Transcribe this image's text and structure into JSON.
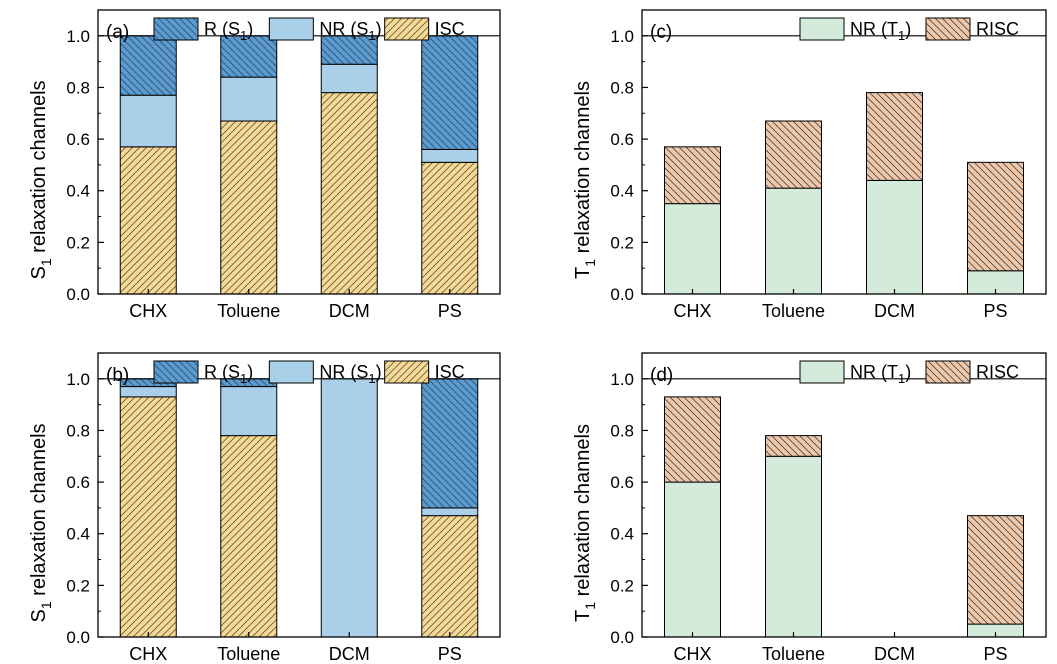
{
  "colors": {
    "R_S1": "#5b9bd0",
    "NR_S1": "#a9d0e8",
    "ISC": "#f4d998",
    "NR_T1": "#d4ebdc",
    "RISC": "#f6c6a0",
    "edge": "#000000"
  },
  "chart_data": [
    {
      "panel_label": "(a)",
      "type": "bar",
      "stacked": true,
      "categories": [
        "CHX",
        "Toluene",
        "DCM",
        "PS"
      ],
      "ylabel_main": "S",
      "ylabel_sub": "1",
      "ylabel_rest": " relaxation channels",
      "ylim": [
        0,
        1.1
      ],
      "yticks": [
        "0.0",
        "0.2",
        "0.4",
        "0.6",
        "0.8",
        "1.0"
      ],
      "legend_position": "top",
      "series": [
        {
          "name": "ISC",
          "label_main": "ISC",
          "label_sub": "",
          "label_tail": "",
          "color_key": "ISC",
          "hatch": "fwd-thin",
          "values": [
            0.57,
            0.67,
            0.78,
            0.51
          ]
        },
        {
          "name": "NR (S1)",
          "label_main": "NR (S",
          "label_sub": "1",
          "label_tail": ")",
          "color_key": "NR_S1",
          "hatch": "none",
          "values": [
            0.2,
            0.17,
            0.11,
            0.05
          ]
        },
        {
          "name": "R (S1)",
          "label_main": "R (S",
          "label_sub": "1",
          "label_tail": ")",
          "color_key": "R_S1",
          "hatch": "back-thin",
          "values": [
            0.23,
            0.16,
            0.11,
            0.44
          ]
        }
      ],
      "legend_order": [
        2,
        1,
        0
      ]
    },
    {
      "panel_label": "(b)",
      "type": "bar",
      "stacked": true,
      "categories": [
        "CHX",
        "Toluene",
        "DCM",
        "PS"
      ],
      "ylabel_main": "S",
      "ylabel_sub": "1",
      "ylabel_rest": " relaxation channels",
      "ylim": [
        0,
        1.1
      ],
      "yticks": [
        "0.0",
        "0.2",
        "0.4",
        "0.6",
        "0.8",
        "1.0"
      ],
      "legend_position": "top",
      "series": [
        {
          "name": "ISC",
          "label_main": "ISC",
          "label_sub": "",
          "label_tail": "",
          "color_key": "ISC",
          "hatch": "fwd-thin",
          "values": [
            0.93,
            0.78,
            0.0,
            0.47
          ]
        },
        {
          "name": "NR (S1)",
          "label_main": "NR (S",
          "label_sub": "1",
          "label_tail": ")",
          "color_key": "NR_S1",
          "hatch": "none",
          "values": [
            0.04,
            0.19,
            1.0,
            0.03
          ]
        },
        {
          "name": "R (S1)",
          "label_main": "R (S",
          "label_sub": "1",
          "label_tail": ")",
          "color_key": "R_S1",
          "hatch": "back-thin",
          "values": [
            0.03,
            0.03,
            0.0,
            0.5
          ]
        }
      ],
      "legend_order": [
        2,
        1,
        0
      ]
    },
    {
      "panel_label": "(c)",
      "type": "bar",
      "stacked": true,
      "categories": [
        "CHX",
        "Toluene",
        "DCM",
        "PS"
      ],
      "ylabel_main": "T",
      "ylabel_sub": "1",
      "ylabel_rest": " relaxation channels",
      "ylim": [
        0,
        1.1
      ],
      "yticks": [
        "0.0",
        "0.2",
        "0.4",
        "0.6",
        "0.8",
        "1.0"
      ],
      "legend_position": "top-right",
      "series": [
        {
          "name": "NR (T1)",
          "label_main": "NR (T",
          "label_sub": "1",
          "label_tail": ")",
          "color_key": "NR_T1",
          "hatch": "none",
          "values": [
            0.35,
            0.41,
            0.44,
            0.09
          ]
        },
        {
          "name": "RISC",
          "label_main": "RISC",
          "label_sub": "",
          "label_tail": "",
          "color_key": "RISC",
          "hatch": "back-thin",
          "values": [
            0.22,
            0.26,
            0.34,
            0.42
          ]
        }
      ],
      "legend_order": [
        0,
        1
      ]
    },
    {
      "panel_label": "(d)",
      "type": "bar",
      "stacked": true,
      "categories": [
        "CHX",
        "Toluene",
        "DCM",
        "PS"
      ],
      "ylabel_main": "T",
      "ylabel_sub": "1",
      "ylabel_rest": " relaxation channels",
      "ylim": [
        0,
        1.1
      ],
      "yticks": [
        "0.0",
        "0.2",
        "0.4",
        "0.6",
        "0.8",
        "1.0"
      ],
      "legend_position": "top-right",
      "series": [
        {
          "name": "NR (T1)",
          "label_main": "NR (T",
          "label_sub": "1",
          "label_tail": ")",
          "color_key": "NR_T1",
          "hatch": "none",
          "values": [
            0.6,
            0.7,
            0.0,
            0.05
          ]
        },
        {
          "name": "RISC",
          "label_main": "RISC",
          "label_sub": "",
          "label_tail": "",
          "color_key": "RISC",
          "hatch": "back-thin",
          "values": [
            0.33,
            0.08,
            0.0,
            0.42
          ]
        }
      ],
      "legend_order": [
        0,
        1
      ]
    }
  ]
}
